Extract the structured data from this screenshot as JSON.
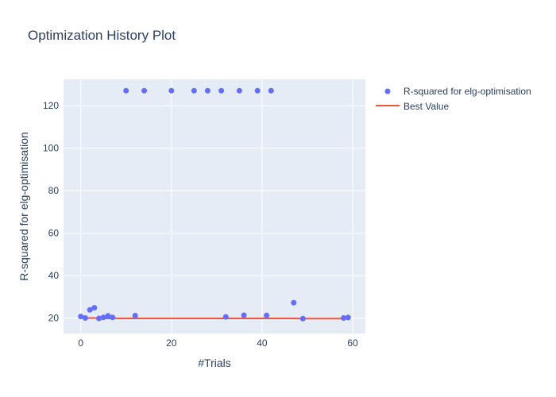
{
  "chart_data": {
    "type": "scatter",
    "title": "Optimization History Plot",
    "xlabel": "#Trials",
    "ylabel": "R-squared for elg-optimisation",
    "xlim": [
      -3.8,
      62.8
    ],
    "ylim": [
      12.8,
      132.4
    ],
    "xticks": [
      0,
      20,
      40,
      60
    ],
    "yticks": [
      20,
      40,
      60,
      80,
      100,
      120
    ],
    "grid": true,
    "legend": "right",
    "series": [
      {
        "name": "R-squared for elg-optimisation",
        "mode": "markers",
        "color": "#636efa",
        "x": [
          0,
          1,
          2,
          3,
          4,
          5,
          6,
          7,
          10,
          12,
          14,
          20,
          25,
          28,
          31,
          32,
          35,
          36,
          39,
          41,
          42,
          47,
          49,
          58,
          59
        ],
        "y": [
          20.8,
          20.1,
          23.9,
          24.9,
          19.9,
          20.4,
          21.1,
          20.4,
          127.1,
          21.2,
          127.1,
          127.1,
          127.1,
          127.1,
          127.1,
          20.6,
          127.1,
          21.4,
          127.1,
          21.3,
          127.1,
          27.3,
          19.8,
          20.1,
          20.3
        ]
      },
      {
        "name": "Best Value",
        "mode": "lines",
        "color": "#ef553b",
        "x": [
          0,
          1,
          2,
          3,
          4,
          5,
          6,
          7,
          10,
          12,
          14,
          20,
          25,
          28,
          31,
          32,
          35,
          36,
          39,
          41,
          42,
          47,
          49,
          58,
          59
        ],
        "y": [
          20.8,
          20.1,
          20.1,
          20.1,
          19.9,
          19.9,
          19.9,
          19.9,
          19.9,
          19.9,
          19.9,
          19.9,
          19.9,
          19.9,
          19.9,
          19.9,
          19.9,
          19.9,
          19.9,
          19.9,
          19.9,
          19.9,
          19.8,
          19.8,
          19.8
        ]
      }
    ]
  }
}
